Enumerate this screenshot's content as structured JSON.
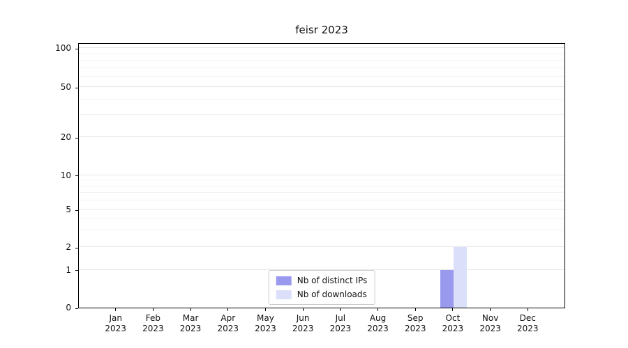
{
  "chart_data": {
    "type": "bar",
    "title": "feisr 2023",
    "categories": [
      "Jan",
      "Feb",
      "Mar",
      "Apr",
      "May",
      "Jun",
      "Jul",
      "Aug",
      "Sep",
      "Oct",
      "Nov",
      "Dec"
    ],
    "x_year_label": "2023",
    "series": [
      {
        "name": "Nb of distinct IPs",
        "color": "#9999ee",
        "values": [
          0,
          0,
          0,
          0,
          0,
          0,
          0,
          0,
          0,
          1,
          0,
          0
        ]
      },
      {
        "name": "Nb of downloads",
        "color": "#dcdffa",
        "values": [
          0,
          0,
          0,
          0,
          0,
          0,
          0,
          0,
          0,
          2,
          0,
          0
        ]
      }
    ],
    "yticks": [
      0,
      1,
      2,
      5,
      10,
      20,
      50,
      100
    ],
    "yscale": "symlog",
    "ylim": [
      0,
      115
    ],
    "grid": true,
    "legend_position": "lower center",
    "background_color": "#ffffff",
    "axis_color": "#000000"
  }
}
